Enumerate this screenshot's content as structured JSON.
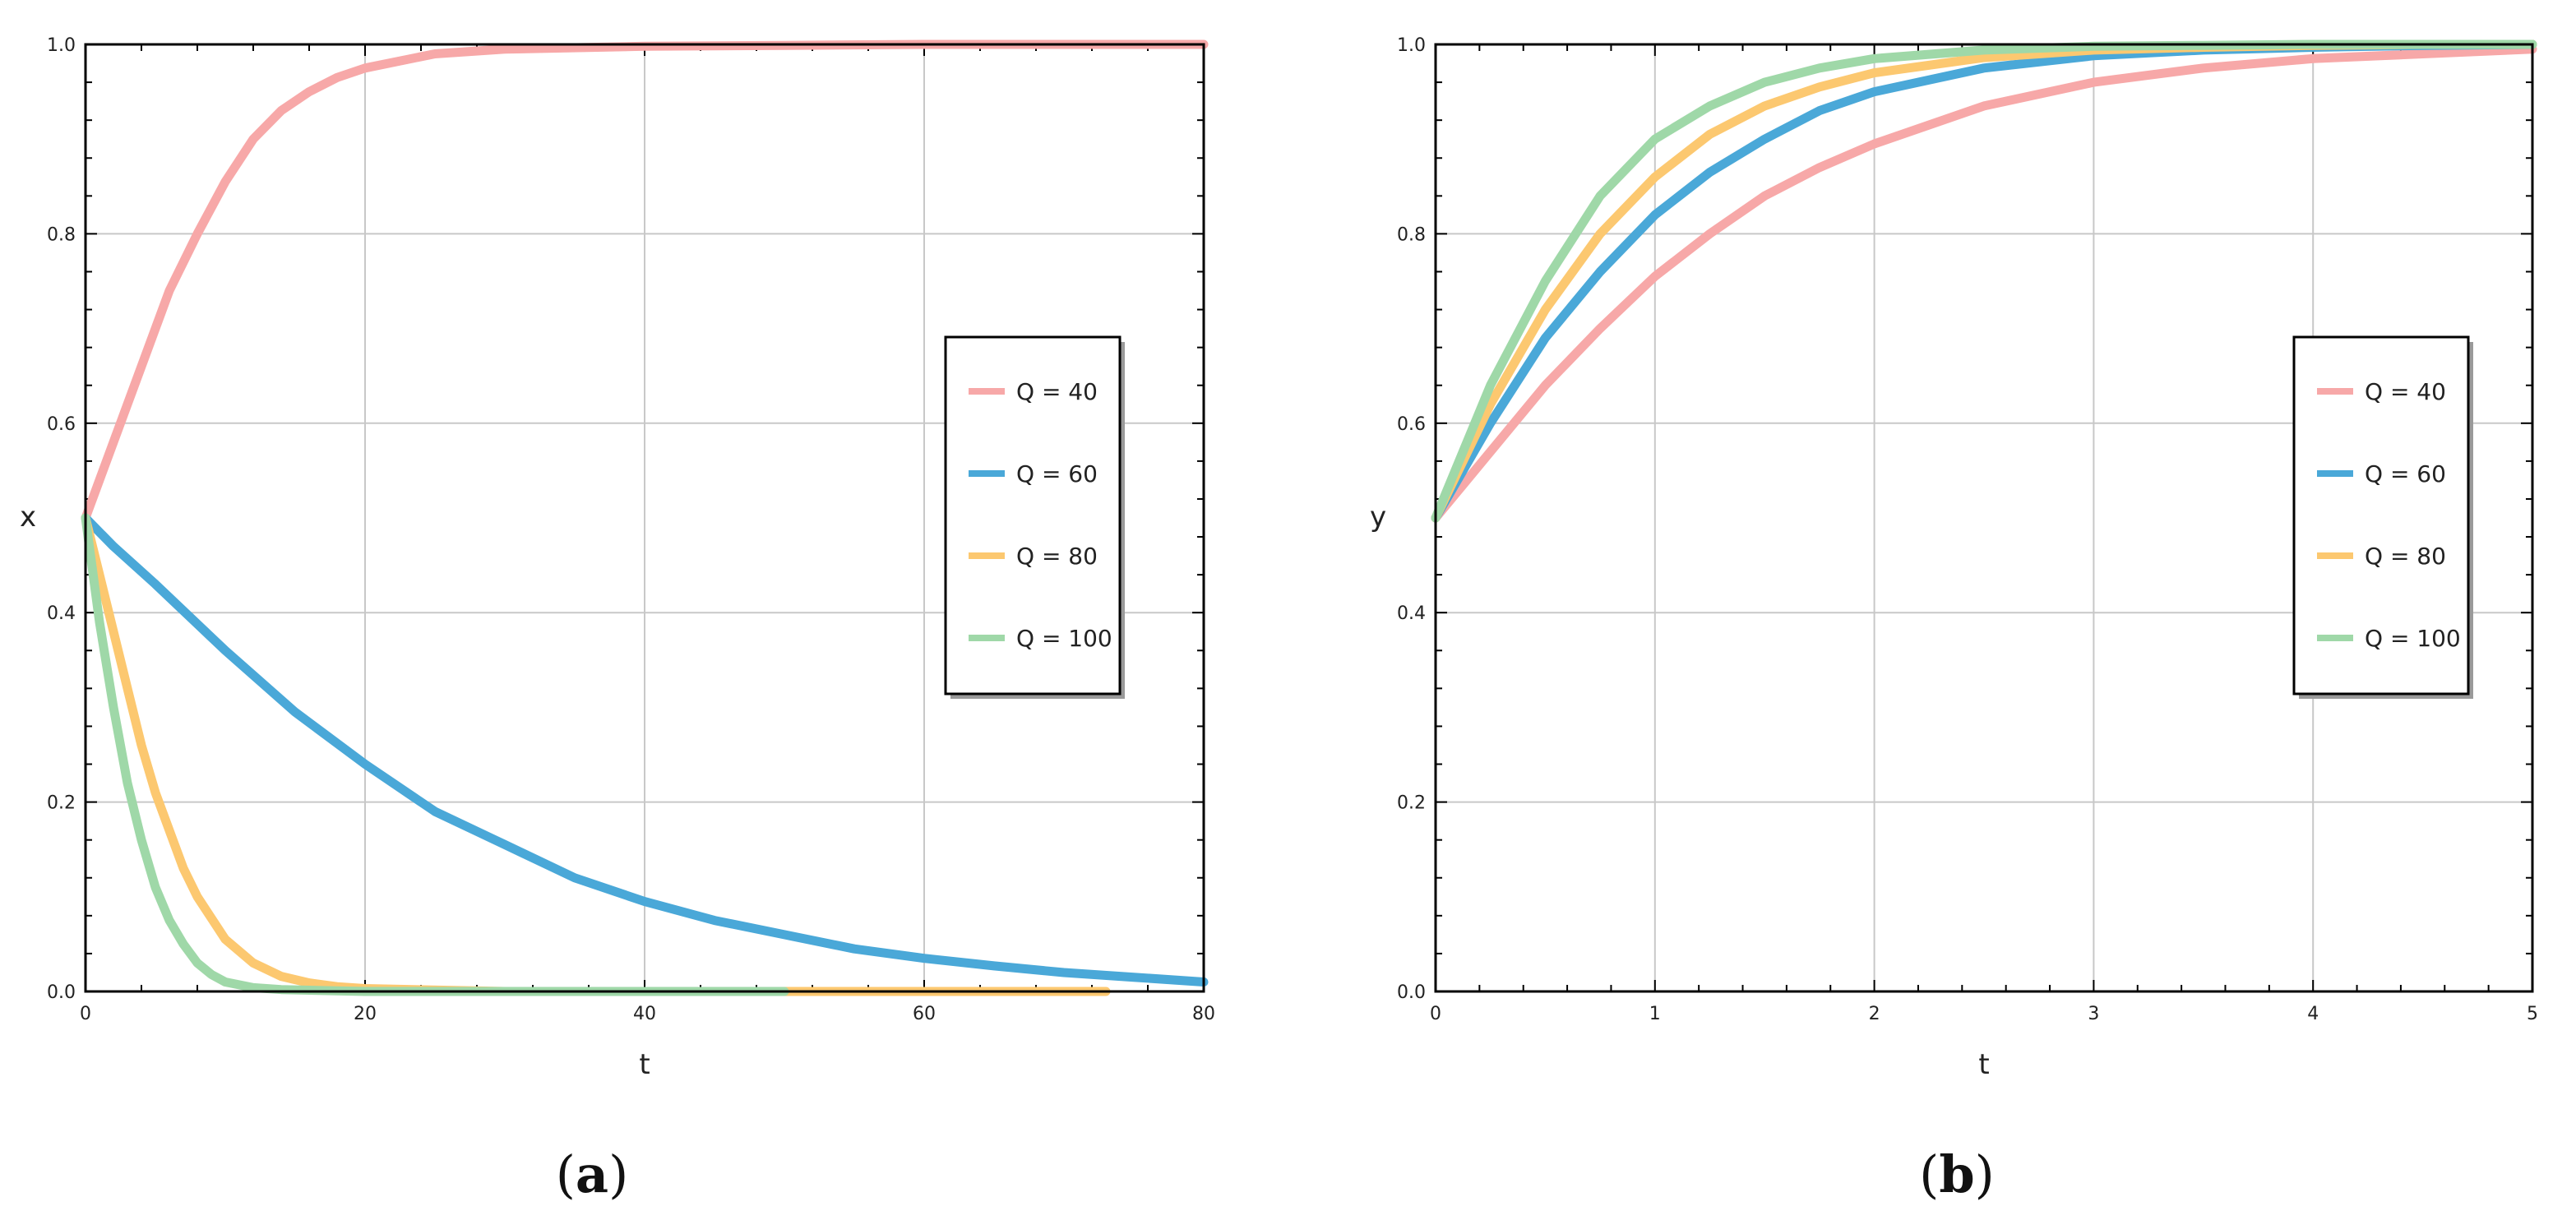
{
  "colors": {
    "q40": "#f7a8a8",
    "q60": "#4aa8d8",
    "q80": "#fcc870",
    "q100": "#9fd8a8",
    "grid": "#c8c8c8",
    "frame": "#000000"
  },
  "chart_data": [
    {
      "type": "line",
      "panel_label": "a",
      "xlabel": "t",
      "ylabel": "x",
      "xlim": [
        0,
        80
      ],
      "ylim": [
        0,
        1
      ],
      "xticks": [
        "0",
        "20",
        "40",
        "60",
        "80"
      ],
      "yticks": [
        "0.0",
        "0.2",
        "0.4",
        "0.6",
        "0.8",
        "1.0"
      ],
      "grid": true,
      "legend_position": "center-right",
      "legend": [
        "Q = 40",
        "Q = 60",
        "Q = 80",
        "Q = 100"
      ],
      "series": [
        {
          "name": "Q = 40",
          "x": [
            0,
            2,
            4,
            6,
            8,
            10,
            12,
            14,
            16,
            18,
            20,
            25,
            30,
            40,
            50,
            60,
            70,
            80
          ],
          "y": [
            0.5,
            0.58,
            0.66,
            0.74,
            0.8,
            0.855,
            0.9,
            0.93,
            0.95,
            0.965,
            0.975,
            0.99,
            0.995,
            0.998,
            0.999,
            1.0,
            1.0,
            1.0
          ]
        },
        {
          "name": "Q = 60",
          "x": [
            0,
            2,
            5,
            10,
            15,
            20,
            25,
            30,
            35,
            40,
            45,
            50,
            55,
            60,
            65,
            70,
            75,
            80
          ],
          "y": [
            0.5,
            0.47,
            0.43,
            0.36,
            0.295,
            0.24,
            0.19,
            0.155,
            0.12,
            0.095,
            0.075,
            0.06,
            0.045,
            0.035,
            0.027,
            0.02,
            0.015,
            0.01
          ]
        },
        {
          "name": "Q = 80",
          "x": [
            0,
            1,
            2,
            3,
            4,
            5,
            6,
            7,
            8,
            10,
            12,
            14,
            16,
            18,
            20,
            30,
            40,
            50,
            60,
            73
          ],
          "y": [
            0.5,
            0.44,
            0.38,
            0.32,
            0.26,
            0.21,
            0.17,
            0.13,
            0.1,
            0.055,
            0.03,
            0.016,
            0.009,
            0.005,
            0.003,
            0.0,
            0.0,
            0.0,
            0.0,
            0.0
          ]
        },
        {
          "name": "Q = 100",
          "x": [
            0,
            1,
            2,
            3,
            4,
            5,
            6,
            7,
            8,
            9,
            10,
            12,
            14,
            20,
            30,
            40,
            50
          ],
          "y": [
            0.5,
            0.39,
            0.3,
            0.22,
            0.16,
            0.11,
            0.075,
            0.05,
            0.03,
            0.018,
            0.01,
            0.004,
            0.002,
            0.0,
            0.0,
            0.0,
            0.0
          ]
        }
      ]
    },
    {
      "type": "line",
      "panel_label": "b",
      "xlabel": "t",
      "ylabel": "y",
      "xlim": [
        0,
        5
      ],
      "ylim": [
        0,
        1
      ],
      "xticks": [
        "0",
        "1",
        "2",
        "3",
        "4",
        "5"
      ],
      "yticks": [
        "0.0",
        "0.2",
        "0.4",
        "0.6",
        "0.8",
        "1.0"
      ],
      "grid": true,
      "legend_position": "center-right",
      "legend": [
        "Q = 40",
        "Q = 60",
        "Q = 80",
        "Q = 100"
      ],
      "series": [
        {
          "name": "Q = 40",
          "x": [
            0,
            0.25,
            0.5,
            0.75,
            1,
            1.25,
            1.5,
            1.75,
            2,
            2.5,
            3,
            3.5,
            4,
            4.5,
            5
          ],
          "y": [
            0.5,
            0.57,
            0.64,
            0.7,
            0.755,
            0.8,
            0.84,
            0.87,
            0.895,
            0.935,
            0.96,
            0.975,
            0.985,
            0.99,
            0.995
          ]
        },
        {
          "name": "Q = 60",
          "x": [
            0,
            0.25,
            0.5,
            0.75,
            1,
            1.25,
            1.5,
            1.75,
            2,
            2.5,
            3,
            3.5,
            4,
            4.5,
            5
          ],
          "y": [
            0.5,
            0.6,
            0.69,
            0.76,
            0.82,
            0.865,
            0.9,
            0.93,
            0.95,
            0.975,
            0.988,
            0.994,
            0.997,
            0.999,
            1.0
          ]
        },
        {
          "name": "Q = 80",
          "x": [
            0,
            0.25,
            0.5,
            0.75,
            1,
            1.25,
            1.5,
            1.75,
            2,
            2.5,
            3,
            3.5,
            4,
            4.5,
            5
          ],
          "y": [
            0.5,
            0.62,
            0.72,
            0.8,
            0.86,
            0.905,
            0.935,
            0.955,
            0.97,
            0.986,
            0.994,
            0.997,
            0.999,
            1.0,
            1.0
          ]
        },
        {
          "name": "Q = 100",
          "x": [
            0,
            0.25,
            0.5,
            0.75,
            1,
            1.25,
            1.5,
            1.75,
            2,
            2.5,
            3,
            3.5,
            4,
            4.5,
            5
          ],
          "y": [
            0.5,
            0.64,
            0.75,
            0.84,
            0.9,
            0.935,
            0.96,
            0.975,
            0.985,
            0.994,
            0.998,
            0.999,
            1.0,
            1.0,
            1.0
          ]
        }
      ]
    }
  ]
}
